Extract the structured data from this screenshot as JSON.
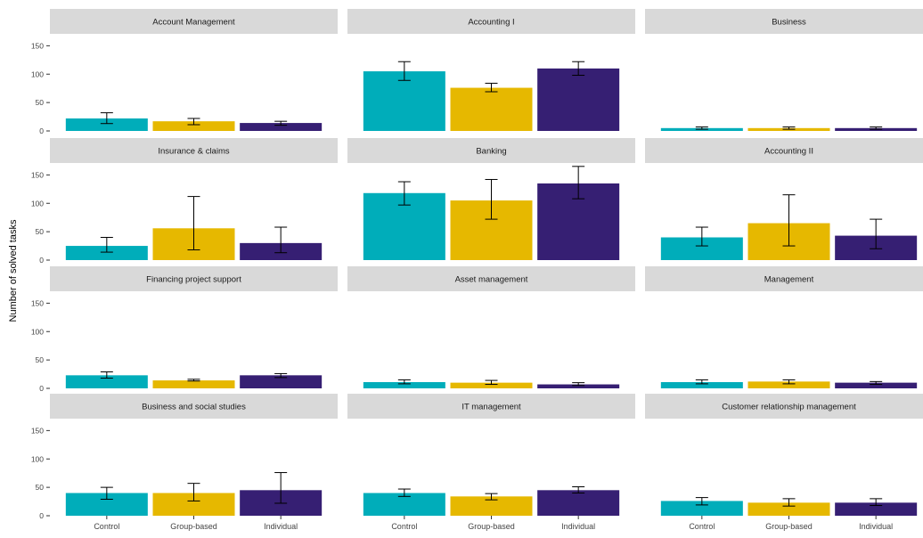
{
  "chart_data": {
    "type": "bar",
    "layout": "facet-grid",
    "ylabel": "Number of solved tasks",
    "xlabel": "",
    "ylim": [
      0,
      160
    ],
    "yticks": [
      0,
      50,
      100,
      150
    ],
    "categories": [
      "Control",
      "Group-based",
      "Individual"
    ],
    "colors": {
      "Control": "#00adba",
      "Group-based": "#e6b800",
      "Individual": "#361f73"
    },
    "strip_color": "#d9d9d9",
    "error_bars": true,
    "facets": [
      {
        "title": "Account Management",
        "values": [
          22,
          17,
          14
        ],
        "err_low": [
          13,
          11,
          10
        ],
        "err_high": [
          32,
          22,
          17
        ]
      },
      {
        "title": "Accounting I",
        "values": [
          105,
          76,
          110
        ],
        "err_low": [
          89,
          69,
          98
        ],
        "err_high": [
          122,
          84,
          122
        ]
      },
      {
        "title": "Business",
        "values": [
          5,
          5,
          5
        ],
        "err_low": [
          3,
          3,
          3
        ],
        "err_high": [
          7,
          7,
          7
        ]
      },
      {
        "title": "Insurance & claims",
        "values": [
          25,
          56,
          30
        ],
        "err_low": [
          14,
          18,
          13
        ],
        "err_high": [
          40,
          112,
          58
        ]
      },
      {
        "title": "Banking",
        "values": [
          118,
          105,
          135
        ],
        "err_low": [
          97,
          72,
          108
        ],
        "err_high": [
          138,
          142,
          165
        ]
      },
      {
        "title": "Accounting II",
        "values": [
          40,
          65,
          43
        ],
        "err_low": [
          25,
          25,
          20
        ],
        "err_high": [
          58,
          115,
          72
        ]
      },
      {
        "title": "Financing project support",
        "values": [
          23,
          14,
          23
        ],
        "err_low": [
          18,
          13,
          19
        ],
        "err_high": [
          29,
          16,
          26
        ]
      },
      {
        "title": "Asset management",
        "values": [
          11,
          10,
          7
        ],
        "err_low": [
          8,
          7,
          5
        ],
        "err_high": [
          15,
          14,
          10
        ]
      },
      {
        "title": "Management",
        "values": [
          11,
          12,
          10
        ],
        "err_low": [
          8,
          8,
          7
        ],
        "err_high": [
          15,
          15,
          12
        ]
      },
      {
        "title": "Business and social studies",
        "values": [
          40,
          40,
          45
        ],
        "err_low": [
          29,
          26,
          22
        ],
        "err_high": [
          50,
          57,
          76
        ]
      },
      {
        "title": "IT management",
        "values": [
          40,
          34,
          45
        ],
        "err_low": [
          34,
          28,
          40
        ],
        "err_high": [
          47,
          39,
          51
        ]
      },
      {
        "title": "Customer relationship management",
        "values": [
          26,
          23,
          23
        ],
        "err_low": [
          19,
          17,
          18
        ],
        "err_high": [
          32,
          30,
          30
        ]
      }
    ]
  }
}
